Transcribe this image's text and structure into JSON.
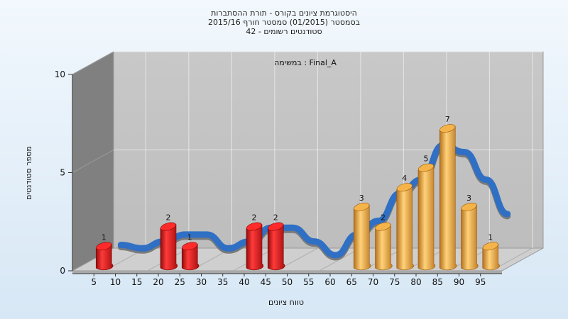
{
  "chart_data": {
    "type": "bar",
    "title_lines": [
      "היסטוגרמת ציונים בקורס - תורת ההסתברות",
      "בסמסטר  (01/2015)  סמסטר חורף 2015/16",
      "42 - סטודנטים רשומים"
    ],
    "annotation": "במשימה : Final_A",
    "xlabel": "טווח ציונים",
    "ylabel": "מספר סטודנטים",
    "categories": [
      "5",
      "10",
      "15",
      "20",
      "25",
      "30",
      "35",
      "40",
      "45",
      "50",
      "55",
      "60",
      "65",
      "70",
      "75",
      "80",
      "85",
      "90",
      "95"
    ],
    "values": [
      1,
      0,
      0,
      2,
      1,
      0,
      0,
      2,
      2,
      0,
      0,
      0,
      3,
      2,
      4,
      5,
      7,
      3,
      1
    ],
    "y_ticks": [
      0,
      5,
      10
    ],
    "ylim": [
      0,
      10
    ],
    "grid": true,
    "trend_curve": "smoothed distribution (3D ribbon)",
    "colors": {
      "bar_low": "#dd1a1a",
      "bar_high": "#e9a83c",
      "ribbon": "#2f6fc4",
      "ribbon_shadow": "#7a7a7a",
      "plot_back": "#c4c4c4",
      "plot_side": "#808080",
      "grid": "#e6e6e6"
    }
  }
}
